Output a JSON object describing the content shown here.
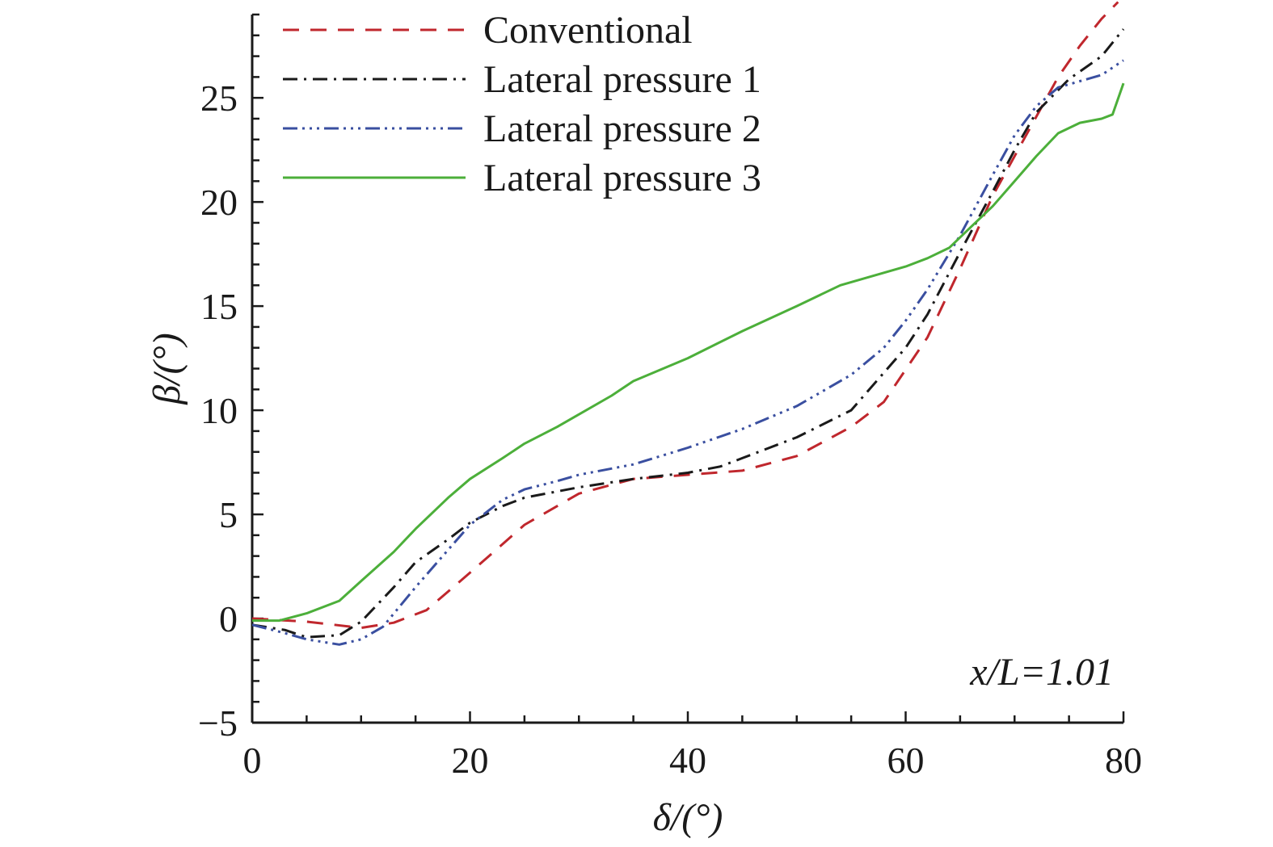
{
  "chart_data": {
    "type": "line",
    "title": "",
    "xlabel": "δ/(°)",
    "ylabel": "β/(°)",
    "xlim": [
      0,
      80
    ],
    "ylim": [
      -5,
      29
    ],
    "xticks": [
      0,
      20,
      40,
      60,
      80
    ],
    "yticks": [
      -5,
      0,
      5,
      10,
      15,
      20,
      25
    ],
    "xminor_step": 5,
    "yminor_step": 1,
    "grid": false,
    "legend_position": "top-left",
    "annotation": "x/L=1.01",
    "series": [
      {
        "name": "Conventional",
        "color": "#c0272d",
        "dash": "20,14",
        "x": [
          0,
          5,
          10,
          13,
          16,
          20,
          25,
          30,
          35,
          40,
          45,
          50,
          55,
          58,
          62,
          65,
          68,
          70,
          72,
          74,
          76,
          78,
          79.5
        ],
        "y": [
          0,
          -0.15,
          -0.45,
          -0.2,
          0.4,
          2.2,
          4.5,
          6.0,
          6.7,
          6.9,
          7.1,
          7.8,
          9.2,
          10.4,
          13.5,
          16.8,
          20.3,
          22.2,
          24.1,
          26.0,
          27.5,
          28.8,
          29.6
        ]
      },
      {
        "name": "Lateral pressure 1",
        "color": "#1a1a1a",
        "dash": "18,8,3,8",
        "x": [
          0,
          3,
          5,
          8,
          10,
          13,
          15,
          18,
          20,
          23,
          25,
          28,
          30,
          35,
          40,
          43,
          45,
          50,
          55,
          58,
          60,
          62,
          65,
          68,
          70,
          72,
          75,
          78,
          80
        ],
        "y": [
          -0.3,
          -0.55,
          -0.9,
          -0.8,
          -0.15,
          1.5,
          2.7,
          3.8,
          4.6,
          5.4,
          5.8,
          6.1,
          6.3,
          6.7,
          7.0,
          7.3,
          7.7,
          8.7,
          10.0,
          11.8,
          13.0,
          14.6,
          17.6,
          20.5,
          22.5,
          24.3,
          25.9,
          27.0,
          28.3
        ]
      },
      {
        "name": "Lateral pressure 2",
        "color": "#3a4fa0",
        "dash": "18,6,3,6,3,6,3,6",
        "x": [
          0,
          3,
          5,
          8,
          10,
          12,
          15,
          18,
          20,
          23,
          25,
          28,
          30,
          35,
          40,
          45,
          50,
          55,
          58,
          60,
          62,
          65,
          68,
          70,
          72,
          74,
          76,
          78,
          80
        ],
        "y": [
          -0.3,
          -0.7,
          -1.0,
          -1.25,
          -1.0,
          -0.4,
          1.5,
          3.3,
          4.5,
          5.7,
          6.2,
          6.6,
          6.9,
          7.4,
          8.2,
          9.1,
          10.2,
          11.7,
          13.0,
          14.3,
          15.8,
          18.4,
          21.3,
          23.2,
          24.6,
          25.5,
          25.8,
          26.1,
          26.8
        ]
      },
      {
        "name": "Lateral pressure 3",
        "color": "#4caf3a",
        "dash": "",
        "x": [
          0,
          2.5,
          5,
          8,
          10,
          13,
          15,
          18,
          20,
          23,
          25,
          28,
          30,
          33,
          35,
          40,
          45,
          50,
          54,
          56,
          60,
          62,
          64,
          66,
          68,
          70,
          72,
          74,
          76,
          78,
          79,
          80
        ],
        "y": [
          -0.1,
          -0.1,
          0.25,
          0.85,
          1.8,
          3.2,
          4.3,
          5.8,
          6.7,
          7.7,
          8.4,
          9.2,
          9.8,
          10.7,
          11.4,
          12.5,
          13.8,
          15.0,
          16.0,
          16.3,
          16.9,
          17.3,
          17.8,
          18.8,
          19.8,
          21.0,
          22.2,
          23.3,
          23.8,
          24.0,
          24.2,
          25.7
        ]
      }
    ]
  }
}
